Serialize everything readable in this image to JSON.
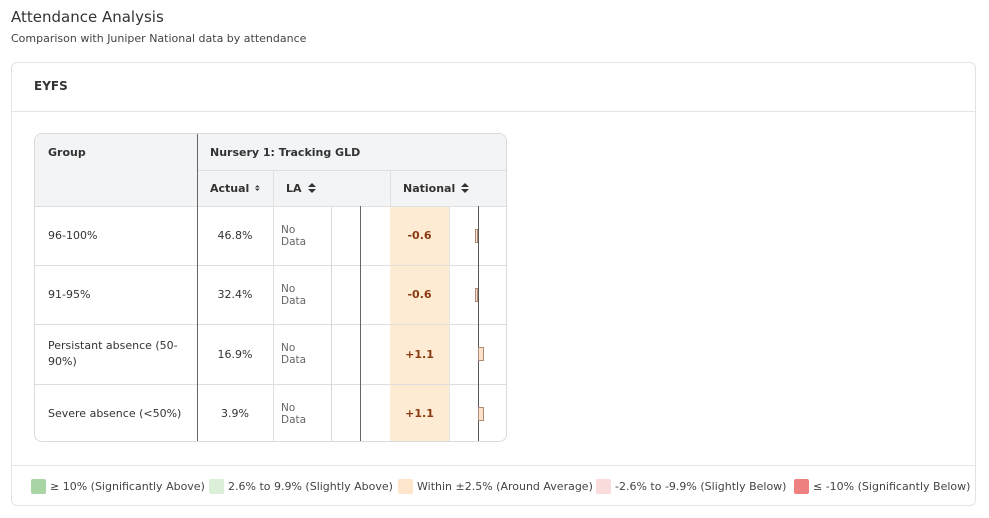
{
  "header": {
    "title": "Attendance Analysis",
    "subtitle": "Comparison with Juniper National data by attendance"
  },
  "card": {
    "title": "EYFS"
  },
  "table": {
    "group_header": "Group",
    "section_header": "Nursery 1: Tracking GLD",
    "columns": [
      "Actual",
      "LA",
      "National"
    ],
    "rows": [
      {
        "group": "96-100%",
        "actual": "46.8%",
        "la": "No Data",
        "national": {
          "value": -0.6,
          "label": "-0.6"
        }
      },
      {
        "group": "91-95%",
        "actual": "32.4%",
        "la": "No Data",
        "national": {
          "value": -0.6,
          "label": "-0.6"
        }
      },
      {
        "group": "Persistant absence (50-90%)",
        "actual": "16.9%",
        "la": "No Data",
        "national": {
          "value": 1.1,
          "label": "+1.1"
        }
      },
      {
        "group": "Severe absence (<50%)",
        "actual": "3.9%",
        "la": "No Data",
        "national": {
          "value": 1.1,
          "label": "+1.1"
        }
      }
    ]
  },
  "legend": [
    {
      "label": "≥ 10% (Significantly Above)",
      "color": "#a9d4a3"
    },
    {
      "label": "2.6% to 9.9% (Slightly Above)",
      "color": "#dcefd9"
    },
    {
      "label": "Within ±2.5% (Around Average)",
      "color": "#fde6cc"
    },
    {
      "label": "-2.6% to -9.9% (Slightly Below)",
      "color": "#fbdcdc"
    },
    {
      "label": "≤ -10% (Significantly Below)",
      "color": "#ef8080"
    }
  ]
}
